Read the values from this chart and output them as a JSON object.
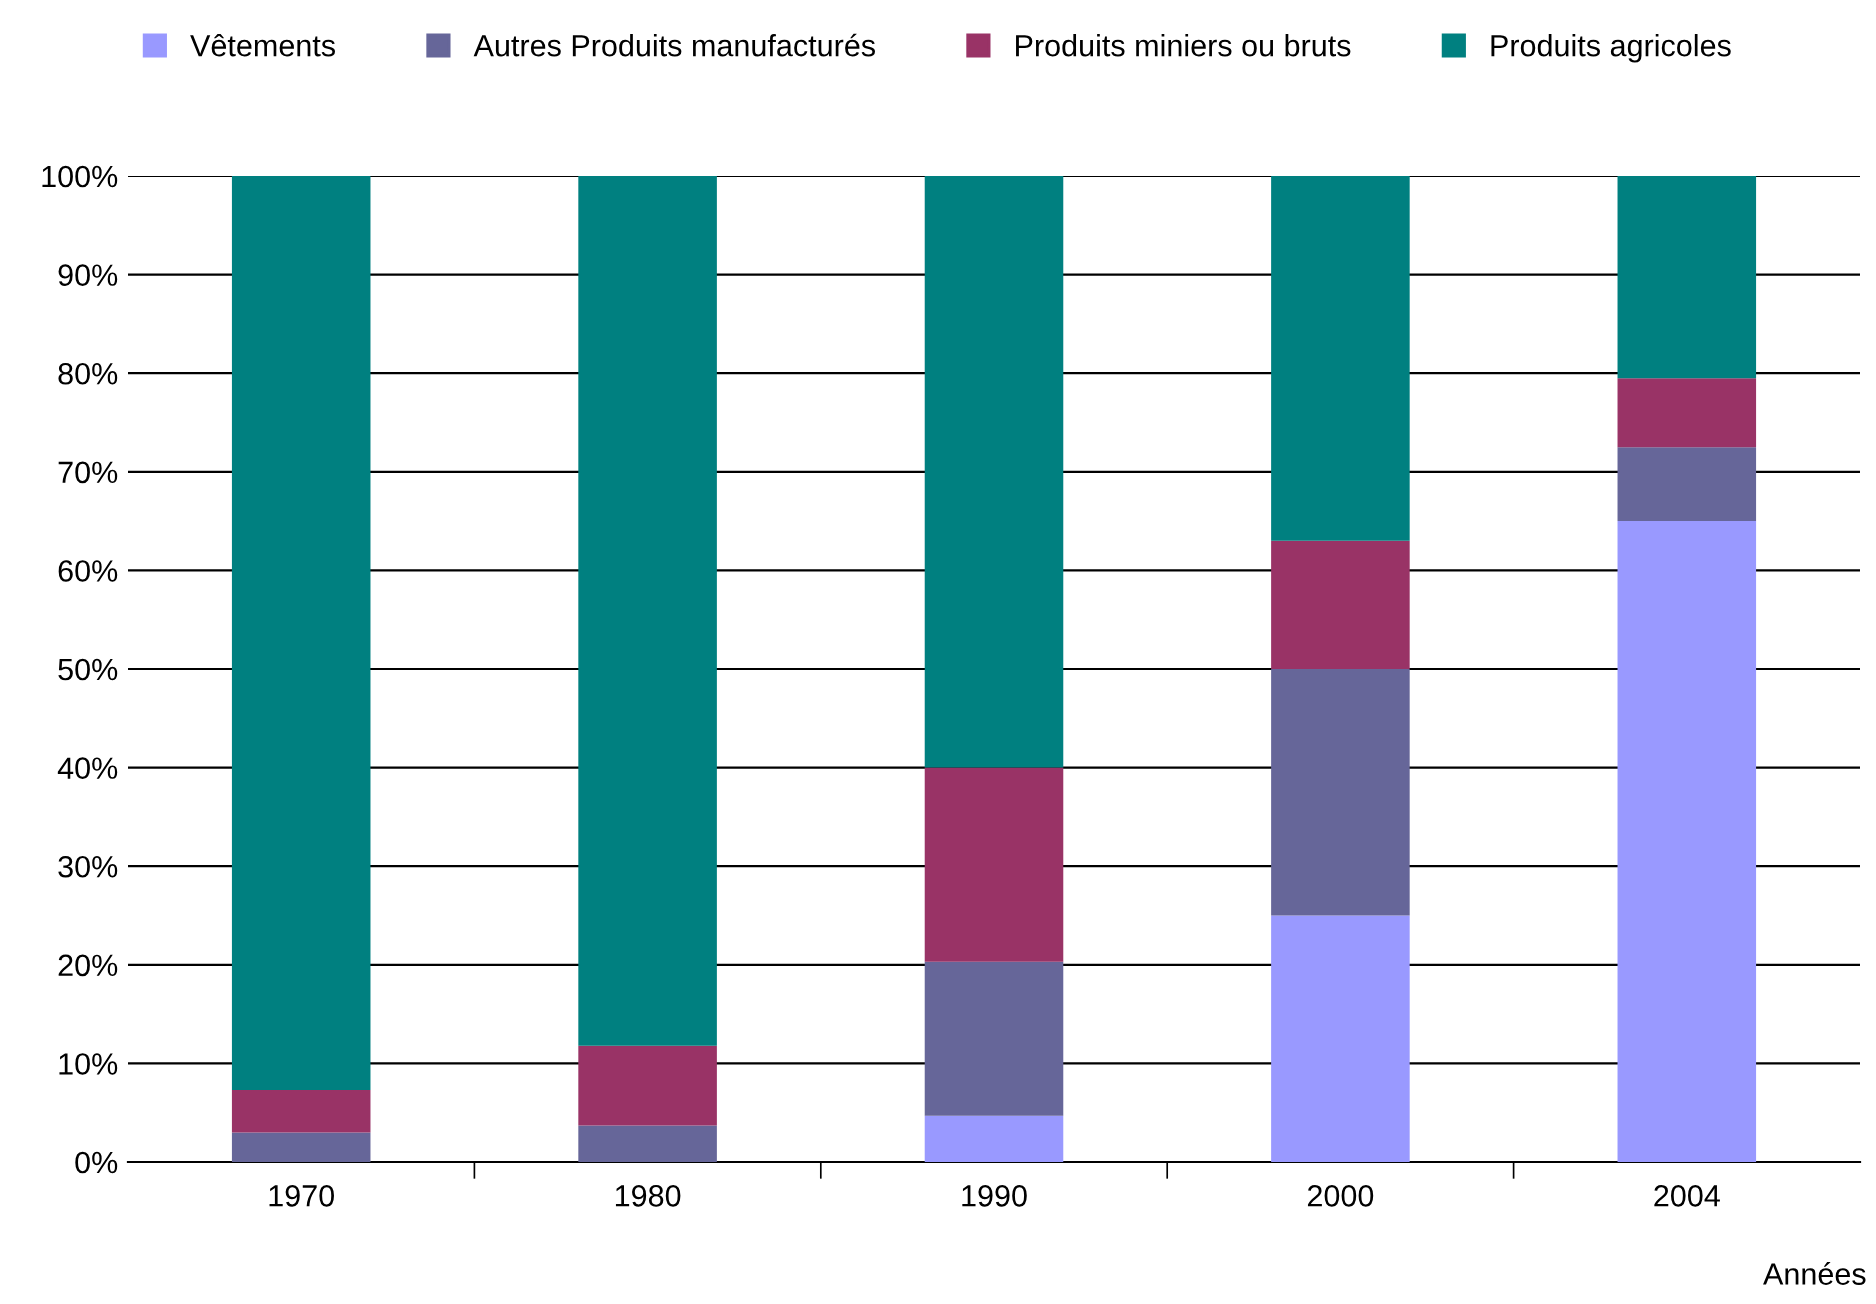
{
  "chart_data": {
    "type": "bar",
    "stacked": true,
    "categories": [
      "1970",
      "1980",
      "1990",
      "2000",
      "2004"
    ],
    "series": [
      {
        "name": "Vêtements",
        "color": "#9999ff",
        "values": [
          0,
          0,
          4.7,
          25,
          65
        ]
      },
      {
        "name": "Autres Produits manufacturés",
        "color": "#666699",
        "values": [
          3,
          3.7,
          15.6,
          25,
          7.5
        ]
      },
      {
        "name": "Produits miniers ou bruts",
        "color": "#993366",
        "values": [
          4.3,
          8.1,
          19.7,
          13,
          7
        ]
      },
      {
        "name": "Produits agricoles",
        "color": "#008080",
        "values": [
          92.7,
          88.2,
          60,
          37,
          20.5
        ]
      }
    ],
    "ylim": [
      0,
      100
    ],
    "yticks": [
      {
        "value": 0,
        "label": "0%"
      },
      {
        "value": 10,
        "label": "10%"
      },
      {
        "value": 20,
        "label": "20%"
      },
      {
        "value": 30,
        "label": "30%"
      },
      {
        "value": 40,
        "label": "40%"
      },
      {
        "value": 50,
        "label": "50%"
      },
      {
        "value": 60,
        "label": "60%"
      },
      {
        "value": 70,
        "label": "70%"
      },
      {
        "value": 80,
        "label": "80%"
      },
      {
        "value": 90,
        "label": "90%"
      },
      {
        "value": 100,
        "label": "100%"
      }
    ],
    "xlabel": "Années",
    "grid": "y",
    "legend": "top"
  }
}
